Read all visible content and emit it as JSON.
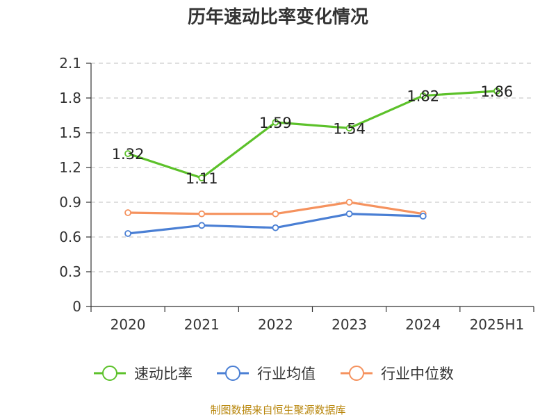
{
  "chart_data": {
    "type": "line",
    "title": "历年速动比率变化情况",
    "categories": [
      "2020",
      "2021",
      "2022",
      "2023",
      "2024",
      "2025H1"
    ],
    "ylim": [
      0,
      2.1
    ],
    "yticks": [
      "0",
      "0.3",
      "0.6",
      "0.9",
      "1.2",
      "1.5",
      "1.8",
      "2.1"
    ],
    "grid": true,
    "legend_position": "bottom",
    "series": [
      {
        "name": "速动比率",
        "values": [
          1.32,
          1.11,
          1.59,
          1.54,
          1.82,
          1.86
        ],
        "labels": [
          "1.32",
          "1.11",
          "1.59",
          "1.54",
          "1.82",
          "1.86"
        ],
        "color": "#5cc12a"
      },
      {
        "name": "行业均值",
        "values": [
          0.63,
          0.7,
          0.68,
          0.8,
          0.78,
          null
        ],
        "color": "#4a7fd4"
      },
      {
        "name": "行业中位数",
        "values": [
          0.81,
          0.8,
          0.8,
          0.9,
          0.8,
          null
        ],
        "color": "#f5925e"
      }
    ],
    "source": "制图数据来自恒生聚源数据库"
  }
}
